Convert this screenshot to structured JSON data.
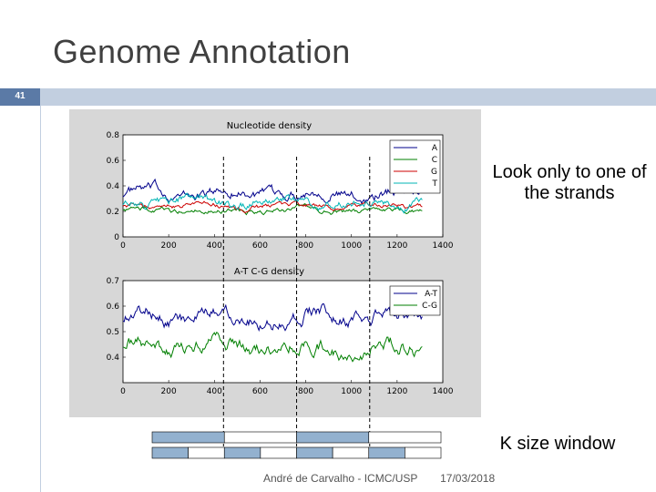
{
  "slide": {
    "title": "Genome Annotation",
    "number": "41",
    "side_text_1": "Look only to one of the strands",
    "side_text_2": "K size window",
    "footer_author": "André de Carvalho - ICMC/USP",
    "footer_date": "17/03/2018",
    "colors": {
      "accent_dark": "#5b7aa6",
      "accent_light": "#c2cfe0"
    }
  },
  "chart_data": [
    {
      "type": "line",
      "title": "Nucleotide density",
      "xlim": [
        0,
        1400
      ],
      "ylim": [
        0,
        0.8
      ],
      "x_ticks": [
        "0",
        "200",
        "400",
        "600",
        "800",
        "1000",
        "1200",
        "1400"
      ],
      "y_ticks": [
        "0",
        "0.2",
        "0.4",
        "0.6",
        "0.8"
      ],
      "legend": [
        "A",
        "C",
        "G",
        "T"
      ],
      "legend_position": "top-right",
      "series_colors": [
        "#00008b",
        "#007f00",
        "#cc0000",
        "#00b5b5"
      ],
      "x_range": [
        0,
        1310
      ],
      "series": [
        {
          "name": "A",
          "mean": 0.34,
          "amp": 0.06
        },
        {
          "name": "C",
          "mean": 0.21,
          "amp": 0.03
        },
        {
          "name": "G",
          "mean": 0.24,
          "amp": 0.03
        },
        {
          "name": "T",
          "mean": 0.27,
          "amp": 0.05
        }
      ],
      "dashed_x": [
        440,
        760,
        1080
      ]
    },
    {
      "type": "line",
      "title": "A-T C-G density",
      "xlim": [
        0,
        1400
      ],
      "ylim": [
        0.3,
        0.7
      ],
      "x_ticks": [
        "0",
        "200",
        "400",
        "600",
        "800",
        "1000",
        "1200",
        "1400"
      ],
      "y_ticks": [
        "0.4",
        "0.5",
        "0.6",
        "0.7"
      ],
      "legend": [
        "A-T",
        "C-G"
      ],
      "legend_position": "top-right",
      "series_colors": [
        "#00008b",
        "#007f00"
      ],
      "x_range": [
        0,
        1310
      ],
      "series": [
        {
          "name": "A-T",
          "mean": 0.56,
          "amp": 0.04
        },
        {
          "name": "C-G",
          "mean": 0.44,
          "amp": 0.04
        }
      ],
      "dashed_x": [
        440,
        760,
        1080
      ]
    }
  ],
  "window_diagram": {
    "row1": [
      {
        "filled": true
      },
      {
        "filled": false
      },
      {
        "filled": true
      },
      {
        "filled": false
      }
    ],
    "row2": [
      {
        "filled": true
      },
      {
        "filled": false
      },
      {
        "filled": true
      },
      {
        "filled": false
      },
      {
        "filled": true
      },
      {
        "filled": false
      },
      {
        "filled": true
      },
      {
        "filled": false
      }
    ],
    "fill_color": "#93b1cf"
  }
}
